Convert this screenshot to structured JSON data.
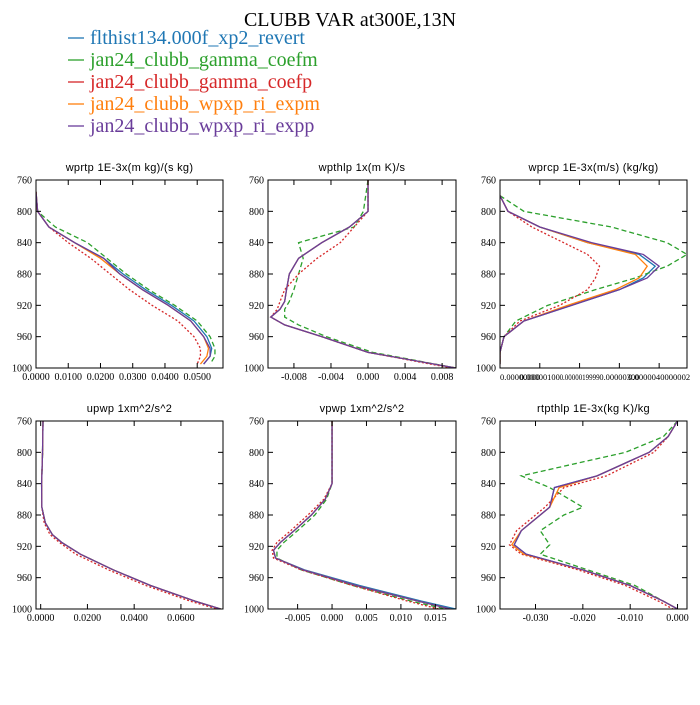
{
  "figure": {
    "title": "CLUBB VAR at300E,13N",
    "legend": [
      {
        "label": "flthist134.000f_xp2_revert",
        "color": "#1f77b4",
        "dash": "solid"
      },
      {
        "label": "jan24_clubb_gamma_coefm",
        "color": "#2ca02c",
        "dash": "dashed"
      },
      {
        "label": "jan24_clubb_gamma_coefp",
        "color": "#d62728",
        "dash": "dotted"
      },
      {
        "label": "jan24_clubb_wpxp_ri_expm",
        "color": "#ff7f0e",
        "dash": "solid"
      },
      {
        "label": "jan24_clubb_wpxp_ri_expp",
        "color": "#6a3d9a",
        "dash": "solid"
      }
    ]
  },
  "chart_data": [
    {
      "type": "line",
      "title": "wprtp  1E-3x(m kg)/(s kg)",
      "xlim": [
        0,
        0.058
      ],
      "ylim": [
        760,
        1000
      ],
      "y_inverted": true,
      "xticks": [
        0,
        0.01,
        0.02,
        0.03,
        0.04,
        0.05
      ],
      "xtick_labels": [
        "0.0000",
        "0.0100",
        "0.0200",
        "0.0300",
        "0.0400",
        "0.0500"
      ],
      "yticks": [
        760,
        800,
        840,
        880,
        920,
        960,
        1000
      ],
      "y": [
        775,
        800,
        820,
        840,
        860,
        880,
        900,
        920,
        940,
        960,
        975,
        985,
        995
      ],
      "series": [
        {
          "name": "flthist134.000f_xp2_revert",
          "x": [
            0,
            0.0005,
            0.004,
            0.012,
            0.021,
            0.027,
            0.034,
            0.042,
            0.049,
            0.053,
            0.0545,
            0.054,
            0.052
          ]
        },
        {
          "name": "jan24_clubb_gamma_coefm",
          "x": [
            0,
            0.0005,
            0.006,
            0.016,
            0.022,
            0.028,
            0.035,
            0.043,
            0.05,
            0.054,
            0.0555,
            0.0555,
            0.054
          ]
        },
        {
          "name": "jan24_clubb_gamma_coefp",
          "x": [
            0,
            0.0005,
            0.004,
            0.01,
            0.017,
            0.023,
            0.029,
            0.036,
            0.044,
            0.049,
            0.051,
            0.051,
            0.05
          ]
        },
        {
          "name": "jan24_clubb_wpxp_ri_expm",
          "x": [
            0,
            0.0005,
            0.004,
            0.012,
            0.02,
            0.026,
            0.033,
            0.041,
            0.048,
            0.052,
            0.0535,
            0.053,
            0.051
          ]
        },
        {
          "name": "jan24_clubb_wpxp_ri_expp",
          "x": [
            0,
            0.0005,
            0.004,
            0.012,
            0.021,
            0.026,
            0.033,
            0.041,
            0.048,
            0.052,
            0.054,
            0.054,
            0.052
          ]
        }
      ]
    },
    {
      "type": "line",
      "title": "wpthlp  1x(m K)/s",
      "xlim": [
        -0.0108,
        0.0095
      ],
      "ylim": [
        760,
        1000
      ],
      "y_inverted": true,
      "xticks": [
        -0.008,
        -0.004,
        0,
        0.004,
        0.008
      ],
      "xtick_labels": [
        "-0.008",
        "-0.004",
        "0.000",
        "0.004",
        "0.008"
      ],
      "yticks": [
        760,
        800,
        840,
        880,
        920,
        960,
        1000
      ],
      "y": [
        760,
        800,
        820,
        840,
        860,
        880,
        900,
        915,
        925,
        935,
        945,
        960,
        980,
        1000
      ],
      "series": [
        {
          "name": "flthist134.000f_xp2_revert",
          "x": [
            0,
            0,
            -0.002,
            -0.005,
            -0.0075,
            -0.0085,
            -0.0088,
            -0.009,
            -0.0095,
            -0.0105,
            -0.009,
            -0.005,
            0,
            0.0095
          ]
        },
        {
          "name": "jan24_clubb_gamma_coefm",
          "x": [
            0,
            -0.0005,
            -0.0015,
            -0.0075,
            -0.007,
            -0.0075,
            -0.008,
            -0.0085,
            -0.009,
            -0.009,
            -0.0075,
            -0.0045,
            0.0005,
            0.0095
          ]
        },
        {
          "name": "jan24_clubb_gamma_coefp",
          "x": [
            0,
            0,
            -0.0015,
            -0.003,
            -0.0055,
            -0.0075,
            -0.009,
            -0.0095,
            -0.0098,
            -0.0105,
            -0.009,
            -0.005,
            0,
            0.009
          ]
        },
        {
          "name": "jan24_clubb_wpxp_ri_expm",
          "x": [
            0,
            0,
            -0.002,
            -0.005,
            -0.0075,
            -0.0085,
            -0.0088,
            -0.009,
            -0.0095,
            -0.0105,
            -0.009,
            -0.005,
            0,
            0.0095
          ]
        },
        {
          "name": "jan24_clubb_wpxp_ri_expp",
          "x": [
            0,
            0,
            -0.002,
            -0.005,
            -0.0075,
            -0.0085,
            -0.0088,
            -0.009,
            -0.0095,
            -0.0105,
            -0.009,
            -0.005,
            0,
            0.0095
          ]
        }
      ]
    },
    {
      "type": "line",
      "title": "wprcp  1E-3x(m/s) (kg/kg)",
      "xlim": [
        0,
        4.7e-06
      ],
      "ylim": [
        760,
        1000
      ],
      "y_inverted": true,
      "xticks": [
        0,
        1e-06,
        2e-06,
        3e-06,
        4e-06
      ],
      "xtick_labels": [
        "0.00000000",
        "0.00000100",
        "0.0000019999",
        "0.00000300",
        "0.0000040000002"
      ],
      "yticks": [
        760,
        800,
        840,
        880,
        920,
        960,
        1000
      ],
      "y": [
        780,
        800,
        820,
        840,
        855,
        870,
        885,
        900,
        920,
        940,
        960,
        980,
        995
      ],
      "series": [
        {
          "name": "flthist134.000f_xp2_revert",
          "x": [
            0,
            2e-07,
            1e-06,
            2.2e-06,
            3.5e-06,
            3.9e-06,
            3.6e-06,
            3e-06,
            1.8e-06,
            6e-07,
            1e-07,
            0,
            0
          ]
        },
        {
          "name": "jan24_clubb_gamma_coefm",
          "x": [
            0,
            6e-07,
            2.8e-06,
            4.2e-06,
            4.7e-06,
            4.2e-06,
            3.4e-06,
            2.4e-06,
            1.2e-06,
            4e-07,
            1e-07,
            0,
            0
          ]
        },
        {
          "name": "jan24_clubb_gamma_coefp",
          "x": [
            0,
            2e-07,
            8e-07,
            1.6e-06,
            2.2e-06,
            2.5e-06,
            2.4e-06,
            2.2e-06,
            1.5e-06,
            5e-07,
            1e-07,
            0,
            0
          ]
        },
        {
          "name": "jan24_clubb_wpxp_ri_expm",
          "x": [
            0,
            2e-07,
            1e-06,
            2.2e-06,
            3.4e-06,
            3.7e-06,
            3.5e-06,
            2.9e-06,
            1.7e-06,
            6e-07,
            1e-07,
            0,
            0
          ]
        },
        {
          "name": "jan24_clubb_wpxp_ri_expp",
          "x": [
            0,
            2e-07,
            1e-06,
            2.3e-06,
            3.6e-06,
            4e-06,
            3.7e-06,
            3e-06,
            1.8e-06,
            6e-07,
            1e-07,
            0,
            0
          ]
        }
      ]
    },
    {
      "type": "line",
      "title": "upwp  1xm^2/s^2",
      "xlim": [
        -0.002,
        0.078
      ],
      "ylim": [
        760,
        1000
      ],
      "y_inverted": true,
      "xticks": [
        0,
        0.02,
        0.04,
        0.06
      ],
      "xtick_labels": [
        "0.0000",
        "0.0200",
        "0.0400",
        "0.0600"
      ],
      "yticks": [
        760,
        800,
        840,
        880,
        920,
        960,
        1000
      ],
      "y": [
        760,
        800,
        840,
        870,
        890,
        905,
        915,
        930,
        950,
        970,
        990,
        1000
      ],
      "series": [
        {
          "name": "flthist134.000f_xp2_revert",
          "x": [
            0.001,
            0.0008,
            0.0004,
            0.0005,
            0.002,
            0.005,
            0.009,
            0.017,
            0.031,
            0.047,
            0.066,
            0.077
          ]
        },
        {
          "name": "jan24_clubb_gamma_coefm",
          "x": [
            0.001,
            0.0008,
            0.0004,
            0.0005,
            0.002,
            0.005,
            0.009,
            0.017,
            0.031,
            0.047,
            0.066,
            0.077
          ]
        },
        {
          "name": "jan24_clubb_gamma_coefp",
          "x": [
            0.001,
            0.0008,
            0.0004,
            0.0005,
            0.0015,
            0.004,
            0.008,
            0.015,
            0.029,
            0.045,
            0.064,
            0.0755
          ]
        },
        {
          "name": "jan24_clubb_wpxp_ri_expm",
          "x": [
            0.001,
            0.0008,
            0.0004,
            0.0005,
            0.002,
            0.005,
            0.009,
            0.017,
            0.031,
            0.047,
            0.066,
            0.077
          ]
        },
        {
          "name": "jan24_clubb_wpxp_ri_expp",
          "x": [
            0.001,
            0.0008,
            0.0004,
            0.0005,
            0.002,
            0.005,
            0.009,
            0.017,
            0.031,
            0.047,
            0.066,
            0.077
          ]
        }
      ]
    },
    {
      "type": "line",
      "title": "vpwp  1xm^2/s^2",
      "xlim": [
        -0.0093,
        0.018
      ],
      "ylim": [
        760,
        1000
      ],
      "y_inverted": true,
      "xticks": [
        -0.005,
        0,
        0.005,
        0.01,
        0.015
      ],
      "xtick_labels": [
        "-0.005",
        "0.000",
        "0.005",
        "0.010",
        "0.015"
      ],
      "yticks": [
        760,
        800,
        840,
        880,
        920,
        960,
        1000
      ],
      "y": [
        760,
        840,
        860,
        880,
        900,
        915,
        925,
        935,
        950,
        970,
        990,
        1000
      ],
      "series": [
        {
          "name": "flthist134.000f_xp2_revert",
          "x": [
            0,
            0,
            -0.001,
            -0.003,
            -0.0055,
            -0.0075,
            -0.0085,
            -0.0082,
            -0.004,
            0.004,
            0.013,
            0.018
          ]
        },
        {
          "name": "jan24_clubb_gamma_coefm",
          "x": [
            0,
            0,
            -0.0008,
            -0.0025,
            -0.005,
            -0.007,
            -0.008,
            -0.008,
            -0.0045,
            0.003,
            0.0115,
            0.0165
          ]
        },
        {
          "name": "jan24_clubb_gamma_coefp",
          "x": [
            0,
            0,
            -0.0012,
            -0.0035,
            -0.006,
            -0.008,
            -0.0087,
            -0.0085,
            -0.0045,
            0.003,
            0.011,
            0.0155
          ]
        },
        {
          "name": "jan24_clubb_wpxp_ri_expm",
          "x": [
            0,
            0,
            -0.001,
            -0.003,
            -0.0055,
            -0.0075,
            -0.0085,
            -0.0082,
            -0.0042,
            0.0035,
            0.0125,
            0.0172
          ]
        },
        {
          "name": "jan24_clubb_wpxp_ri_expp",
          "x": [
            0,
            0,
            -0.001,
            -0.003,
            -0.0055,
            -0.0075,
            -0.0085,
            -0.0082,
            -0.0042,
            0.0035,
            0.0125,
            0.0172
          ]
        }
      ]
    },
    {
      "type": "line",
      "title": "rtpthlp  1E-3x(kg K)/kg",
      "xlim": [
        -0.0375,
        0.002
      ],
      "ylim": [
        760,
        1000
      ],
      "y_inverted": true,
      "xticks": [
        -0.03,
        -0.02,
        -0.01,
        0
      ],
      "xtick_labels": [
        "-0.030",
        "-0.020",
        "-0.010",
        "0.000"
      ],
      "yticks": [
        760,
        800,
        840,
        880,
        920,
        960,
        1000
      ],
      "y": [
        760,
        780,
        800,
        830,
        845,
        870,
        880,
        900,
        918,
        930,
        950,
        970,
        990,
        1000
      ],
      "series": [
        {
          "name": "flthist134.000f_xp2_revert",
          "x": [
            0,
            -0.002,
            -0.006,
            -0.017,
            -0.026,
            -0.027,
            -0.029,
            -0.033,
            -0.0345,
            -0.032,
            -0.02,
            -0.01,
            -0.003,
            0
          ]
        },
        {
          "name": "jan24_clubb_gamma_coefm",
          "x": [
            0,
            -0.003,
            -0.011,
            -0.033,
            -0.027,
            -0.02,
            -0.024,
            -0.029,
            -0.027,
            -0.029,
            -0.019,
            -0.009,
            -0.003,
            0
          ]
        },
        {
          "name": "jan24_clubb_gamma_coefp",
          "x": [
            0,
            -0.002,
            -0.005,
            -0.015,
            -0.024,
            -0.028,
            -0.03,
            -0.034,
            -0.0355,
            -0.033,
            -0.021,
            -0.011,
            -0.004,
            -0.001
          ]
        },
        {
          "name": "jan24_clubb_wpxp_ri_expm",
          "x": [
            0,
            -0.002,
            -0.006,
            -0.017,
            -0.025,
            -0.027,
            -0.029,
            -0.033,
            -0.035,
            -0.0325,
            -0.02,
            -0.01,
            -0.003,
            0
          ]
        },
        {
          "name": "jan24_clubb_wpxp_ri_expp",
          "x": [
            0,
            -0.002,
            -0.006,
            -0.017,
            -0.026,
            -0.027,
            -0.029,
            -0.033,
            -0.0345,
            -0.032,
            -0.02,
            -0.01,
            -0.003,
            0
          ]
        }
      ]
    }
  ]
}
